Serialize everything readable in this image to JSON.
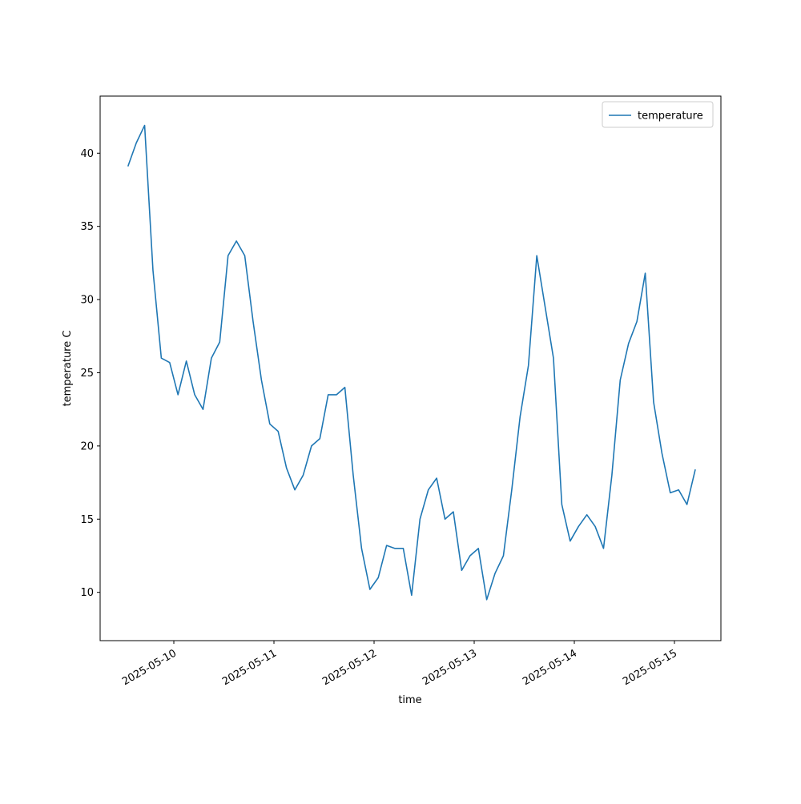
{
  "chart_data": {
    "type": "line",
    "xlabel": "time",
    "ylabel": "temperature C",
    "x": [
      "2025-05-09T13:00",
      "2025-05-09T15:00",
      "2025-05-09T17:00",
      "2025-05-09T19:00",
      "2025-05-09T21:00",
      "2025-05-09T23:00",
      "2025-05-10T01:00",
      "2025-05-10T03:00",
      "2025-05-10T05:00",
      "2025-05-10T07:00",
      "2025-05-10T09:00",
      "2025-05-10T11:00",
      "2025-05-10T13:00",
      "2025-05-10T15:00",
      "2025-05-10T17:00",
      "2025-05-10T19:00",
      "2025-05-10T21:00",
      "2025-05-10T23:00",
      "2025-05-11T01:00",
      "2025-05-11T03:00",
      "2025-05-11T05:00",
      "2025-05-11T07:00",
      "2025-05-11T09:00",
      "2025-05-11T11:00",
      "2025-05-11T13:00",
      "2025-05-11T15:00",
      "2025-05-11T17:00",
      "2025-05-11T19:00",
      "2025-05-11T21:00",
      "2025-05-11T23:00",
      "2025-05-12T01:00",
      "2025-05-12T03:00",
      "2025-05-12T05:00",
      "2025-05-12T07:00",
      "2025-05-12T09:00",
      "2025-05-12T11:00",
      "2025-05-12T13:00",
      "2025-05-12T15:00",
      "2025-05-12T17:00",
      "2025-05-12T19:00",
      "2025-05-12T21:00",
      "2025-05-12T23:00",
      "2025-05-13T01:00",
      "2025-05-13T03:00",
      "2025-05-13T05:00",
      "2025-05-13T07:00",
      "2025-05-13T09:00",
      "2025-05-13T11:00",
      "2025-05-13T13:00",
      "2025-05-13T15:00",
      "2025-05-13T17:00",
      "2025-05-13T19:00",
      "2025-05-13T21:00",
      "2025-05-13T23:00",
      "2025-05-14T01:00",
      "2025-05-14T03:00",
      "2025-05-14T05:00",
      "2025-05-14T07:00",
      "2025-05-14T09:00",
      "2025-05-14T11:00",
      "2025-05-14T13:00",
      "2025-05-14T15:00",
      "2025-05-14T17:00",
      "2025-05-14T19:00",
      "2025-05-14T21:00",
      "2025-05-14T23:00",
      "2025-05-15T01:00",
      "2025-05-15T03:00",
      "2025-05-15T05:00"
    ],
    "series": [
      {
        "name": "temperature",
        "color": "#1f77b4",
        "values": [
          39.1,
          40.7,
          41.9,
          32,
          26,
          25.7,
          23.5,
          25.8,
          23.5,
          22.5,
          26,
          27.1,
          33,
          34,
          33,
          28.5,
          24.5,
          21.5,
          21,
          18.5,
          17,
          18,
          20,
          20.5,
          23.5,
          23.5,
          24,
          18,
          13,
          10.2,
          11,
          13.2,
          13,
          13,
          9.8,
          15,
          17,
          17.8,
          15,
          15.5,
          11.5,
          12.5,
          13,
          9.5,
          11.3,
          12.5,
          17,
          22,
          25.5,
          33,
          29.5,
          26,
          16,
          13.5,
          14.5,
          15.3,
          14.5,
          13,
          18,
          24.5,
          27,
          28.5,
          31.8,
          23,
          19.5,
          16.8,
          17,
          16,
          18.4
        ]
      }
    ],
    "xlim": [
      "2025-05-09T06:20",
      "2025-05-15T11:08"
    ],
    "xticks": [
      "2025-05-10",
      "2025-05-11",
      "2025-05-12",
      "2025-05-13",
      "2025-05-14",
      "2025-05-15"
    ],
    "ylim": [
      6.7,
      43.9
    ],
    "yticks": [
      10,
      15,
      20,
      25,
      30,
      35,
      40
    ],
    "grid": false,
    "legend": "upper right"
  }
}
